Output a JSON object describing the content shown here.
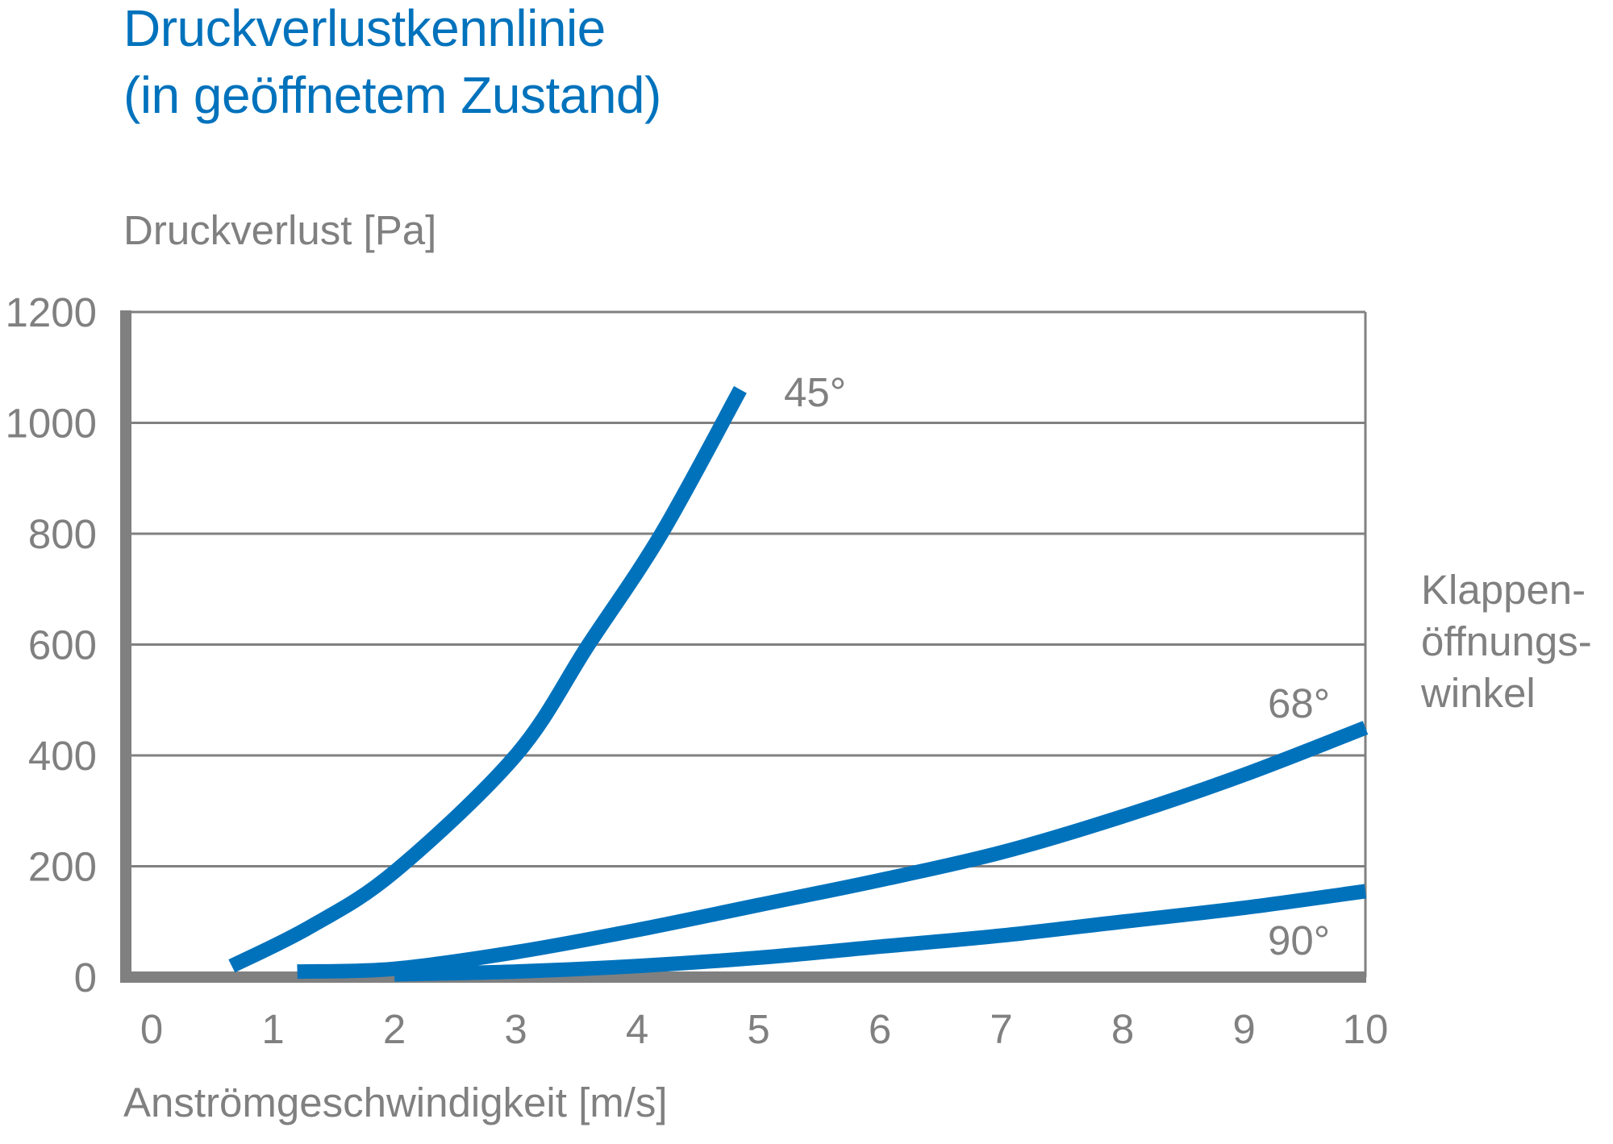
{
  "title_line1": "Druckverlustkennlinie",
  "title_line2": "(in geöffnetem Zustand)",
  "colors": {
    "curve": "#0072bc",
    "axis": "#808080",
    "title": "#0072bc",
    "text": "#808080"
  },
  "legend": {
    "line1": "Klappen-",
    "line2": "öffnungs-",
    "line3": "winkel"
  },
  "chart_data": {
    "type": "line",
    "title": "Druckverlustkennlinie (in geöffnetem Zustand)",
    "xlabel": "Anströmgeschwindigkeit [m/s]",
    "ylabel": "Druckverlust [Pa]",
    "xlim": [
      0,
      10
    ],
    "ylim": [
      0,
      1200
    ],
    "xticks": [
      "0",
      "1",
      "2",
      "3",
      "4",
      "5",
      "6",
      "7",
      "8",
      "9",
      "10"
    ],
    "yticks": [
      "0",
      "200",
      "400",
      "600",
      "800",
      "1000",
      "1200"
    ],
    "grid": "horizontal",
    "legend_title": "Klappenöffnungswinkel",
    "series": [
      {
        "name": "45°",
        "x": [
          0.66,
          1.3,
          2.0,
          3.0,
          3.6,
          4.2,
          4.85
        ],
        "y": [
          20,
          90,
          190,
          400,
          600,
          800,
          1060
        ]
      },
      {
        "name": "68°",
        "x": [
          1.2,
          2.0,
          3.0,
          4.0,
          5.0,
          6.0,
          7.0,
          8.0,
          9.0,
          10.0
        ],
        "y": [
          10,
          15,
          45,
          85,
          130,
          175,
          225,
          290,
          365,
          450
        ]
      },
      {
        "name": "90°",
        "x": [
          2.0,
          3.0,
          4.0,
          5.0,
          6.0,
          7.0,
          8.0,
          9.0,
          10.0
        ],
        "y": [
          5,
          10,
          20,
          35,
          55,
          75,
          100,
          125,
          155
        ]
      }
    ]
  }
}
